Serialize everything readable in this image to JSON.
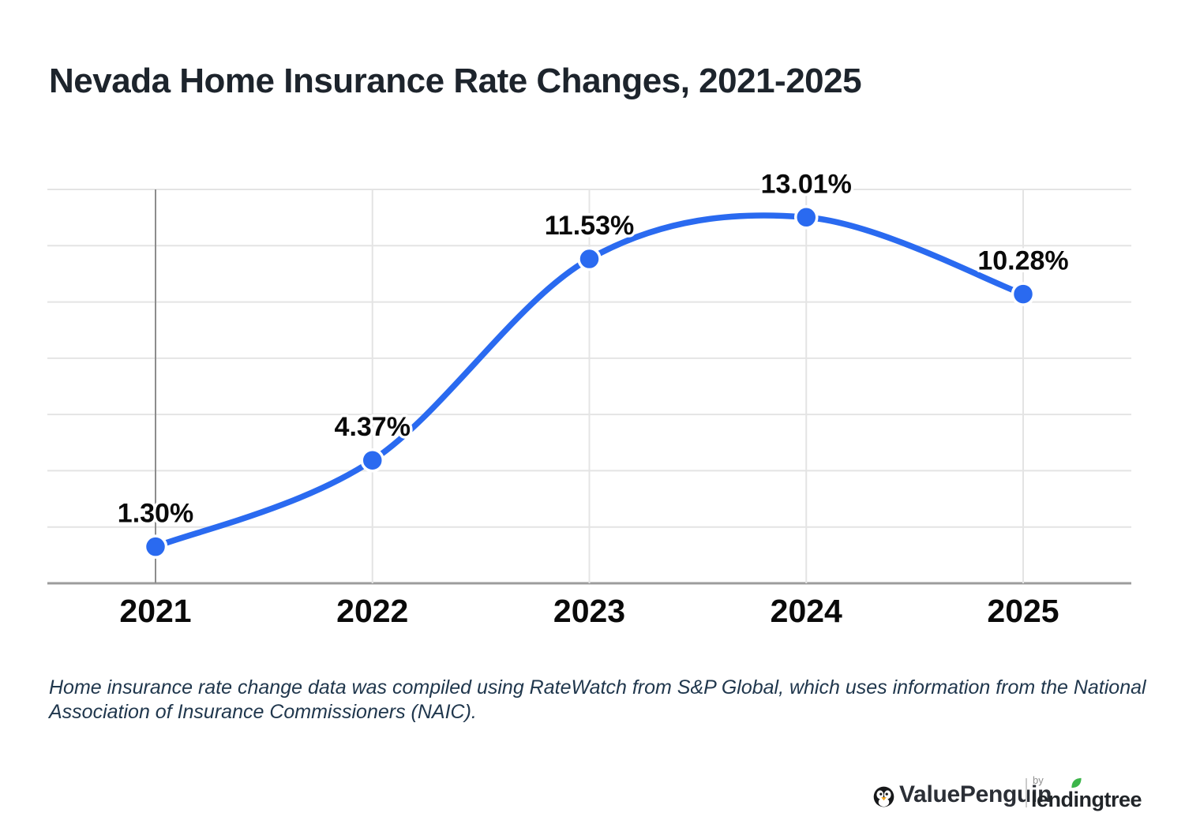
{
  "title": "Nevada Home Insurance Rate Changes, 2021-2025",
  "chart_data": {
    "type": "line",
    "categories": [
      "2021",
      "2022",
      "2023",
      "2024",
      "2025"
    ],
    "values": [
      1.3,
      4.37,
      11.53,
      13.01,
      10.28
    ],
    "point_labels": [
      "1.30%",
      "4.37%",
      "11.53%",
      "13.01%",
      "10.28%"
    ],
    "title": "Nevada Home Insurance Rate Changes, 2021-2025",
    "xlabel": "",
    "ylabel": "",
    "ylim": [
      0,
      14
    ],
    "grid_step_pct": 2,
    "grid": "horizontal lines every 2%, vertical line at each year, no y-axis tick labels",
    "legend": "none",
    "colors": {
      "line": "#2a6af0",
      "point_fill": "#2a6af0",
      "point_ring": "#ffffff",
      "grid_line": "#e4e4e4",
      "axis_line": "#9c9c9c",
      "first_column_line": "#8d8d8d",
      "label_text": "#0a0a0a"
    }
  },
  "footnote": "Home insurance rate change data was compiled using RateWatch from S&P Global, which uses information from the National Association of Insurance Commissioners (NAIC).",
  "branding": {
    "valuepenguin": {
      "icon": "penguin-icon",
      "name": "ValuePenguin"
    },
    "by_label": "by",
    "lendingtree": {
      "icon": "leaf-icon",
      "name_pre": "lend",
      "name_i": "i",
      "name_post": "ngtree"
    }
  }
}
